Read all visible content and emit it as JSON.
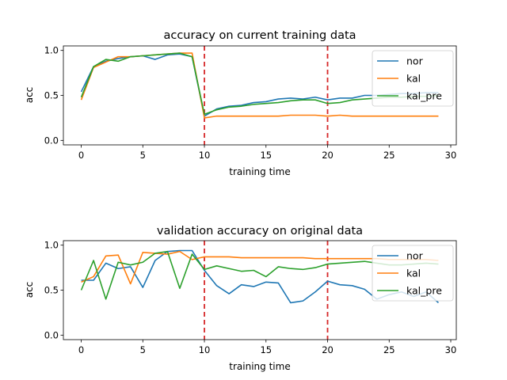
{
  "colors": {
    "nor": "#1f77b4",
    "kal": "#ff7f0e",
    "kal_pre": "#2ca02c",
    "vline": "#d62728"
  },
  "chart_data": [
    {
      "type": "line",
      "title": "accuracy on current training data",
      "xlabel": "training time",
      "ylabel": "acc",
      "xlim": [
        -1.45,
        30.45
      ],
      "ylim": [
        -0.05,
        1.05
      ],
      "xticks": [
        0,
        5,
        10,
        15,
        20,
        25,
        30
      ],
      "yticks": [
        0.0,
        0.5,
        1.0
      ],
      "xtick_labels": [
        "0",
        "5",
        "10",
        "15",
        "20",
        "25",
        "30"
      ],
      "ytick_labels": [
        "0.0",
        "0.5",
        "1.0"
      ],
      "vlines": [
        10,
        20
      ],
      "legend_position": "upper right",
      "x": [
        0,
        1,
        2,
        3,
        4,
        5,
        6,
        7,
        8,
        9,
        10,
        11,
        12,
        13,
        14,
        15,
        16,
        17,
        18,
        19,
        20,
        21,
        22,
        23,
        24,
        25,
        26,
        27,
        28,
        29
      ],
      "series": [
        {
          "name": "nor",
          "values": [
            0.54,
            0.82,
            0.88,
            0.91,
            0.93,
            0.94,
            0.9,
            0.95,
            0.96,
            0.93,
            0.27,
            0.35,
            0.38,
            0.39,
            0.42,
            0.43,
            0.46,
            0.47,
            0.46,
            0.48,
            0.45,
            0.47,
            0.47,
            0.5,
            0.5,
            0.51,
            0.52,
            0.52,
            0.53,
            0.53
          ]
        },
        {
          "name": "kal",
          "values": [
            0.45,
            0.81,
            0.87,
            0.93,
            0.93,
            0.94,
            0.95,
            0.96,
            0.97,
            0.97,
            0.25,
            0.27,
            0.27,
            0.27,
            0.27,
            0.27,
            0.27,
            0.28,
            0.28,
            0.28,
            0.27,
            0.28,
            0.27,
            0.27,
            0.27,
            0.27,
            0.27,
            0.27,
            0.27,
            0.27
          ]
        },
        {
          "name": "kal_pre",
          "values": [
            0.48,
            0.82,
            0.9,
            0.88,
            0.93,
            0.94,
            0.95,
            0.96,
            0.97,
            0.93,
            0.29,
            0.34,
            0.37,
            0.38,
            0.4,
            0.41,
            0.42,
            0.44,
            0.45,
            0.45,
            0.41,
            0.42,
            0.45,
            0.46,
            0.47,
            0.48,
            0.48,
            0.49,
            0.49,
            0.5
          ]
        }
      ]
    },
    {
      "type": "line",
      "title": "validation accuracy on original data",
      "xlabel": "training time",
      "ylabel": "acc",
      "xlim": [
        -1.45,
        30.45
      ],
      "ylim": [
        -0.05,
        1.05
      ],
      "xticks": [
        0,
        5,
        10,
        15,
        20,
        25,
        30
      ],
      "yticks": [
        0.0,
        0.5,
        1.0
      ],
      "xtick_labels": [
        "0",
        "5",
        "10",
        "15",
        "20",
        "25",
        "30"
      ],
      "ytick_labels": [
        "0.0",
        "0.5",
        "1.0"
      ],
      "vlines": [
        10,
        20
      ],
      "legend_position": "upper right",
      "x": [
        0,
        1,
        2,
        3,
        4,
        5,
        6,
        7,
        8,
        9,
        10,
        11,
        12,
        13,
        14,
        15,
        16,
        17,
        18,
        19,
        20,
        21,
        22,
        23,
        24,
        25,
        26,
        27,
        28,
        29
      ],
      "series": [
        {
          "name": "nor",
          "values": [
            0.61,
            0.61,
            0.8,
            0.74,
            0.76,
            0.53,
            0.83,
            0.93,
            0.94,
            0.94,
            0.72,
            0.55,
            0.46,
            0.56,
            0.54,
            0.59,
            0.58,
            0.36,
            0.38,
            0.48,
            0.6,
            0.56,
            0.55,
            0.51,
            0.4,
            0.45,
            0.48,
            0.43,
            0.48,
            0.36
          ]
        },
        {
          "name": "kal",
          "values": [
            0.59,
            0.65,
            0.88,
            0.89,
            0.57,
            0.92,
            0.91,
            0.9,
            0.93,
            0.84,
            0.87,
            0.87,
            0.87,
            0.86,
            0.86,
            0.86,
            0.86,
            0.86,
            0.86,
            0.85,
            0.85,
            0.85,
            0.85,
            0.85,
            0.85,
            0.84,
            0.84,
            0.84,
            0.84,
            0.83
          ]
        },
        {
          "name": "kal_pre",
          "values": [
            0.5,
            0.83,
            0.4,
            0.81,
            0.78,
            0.81,
            0.91,
            0.93,
            0.52,
            0.9,
            0.73,
            0.77,
            0.74,
            0.71,
            0.72,
            0.65,
            0.76,
            0.74,
            0.73,
            0.75,
            0.79,
            0.8,
            0.81,
            0.82,
            0.8,
            0.78,
            0.78,
            0.79,
            0.8,
            0.79
          ]
        }
      ]
    }
  ]
}
